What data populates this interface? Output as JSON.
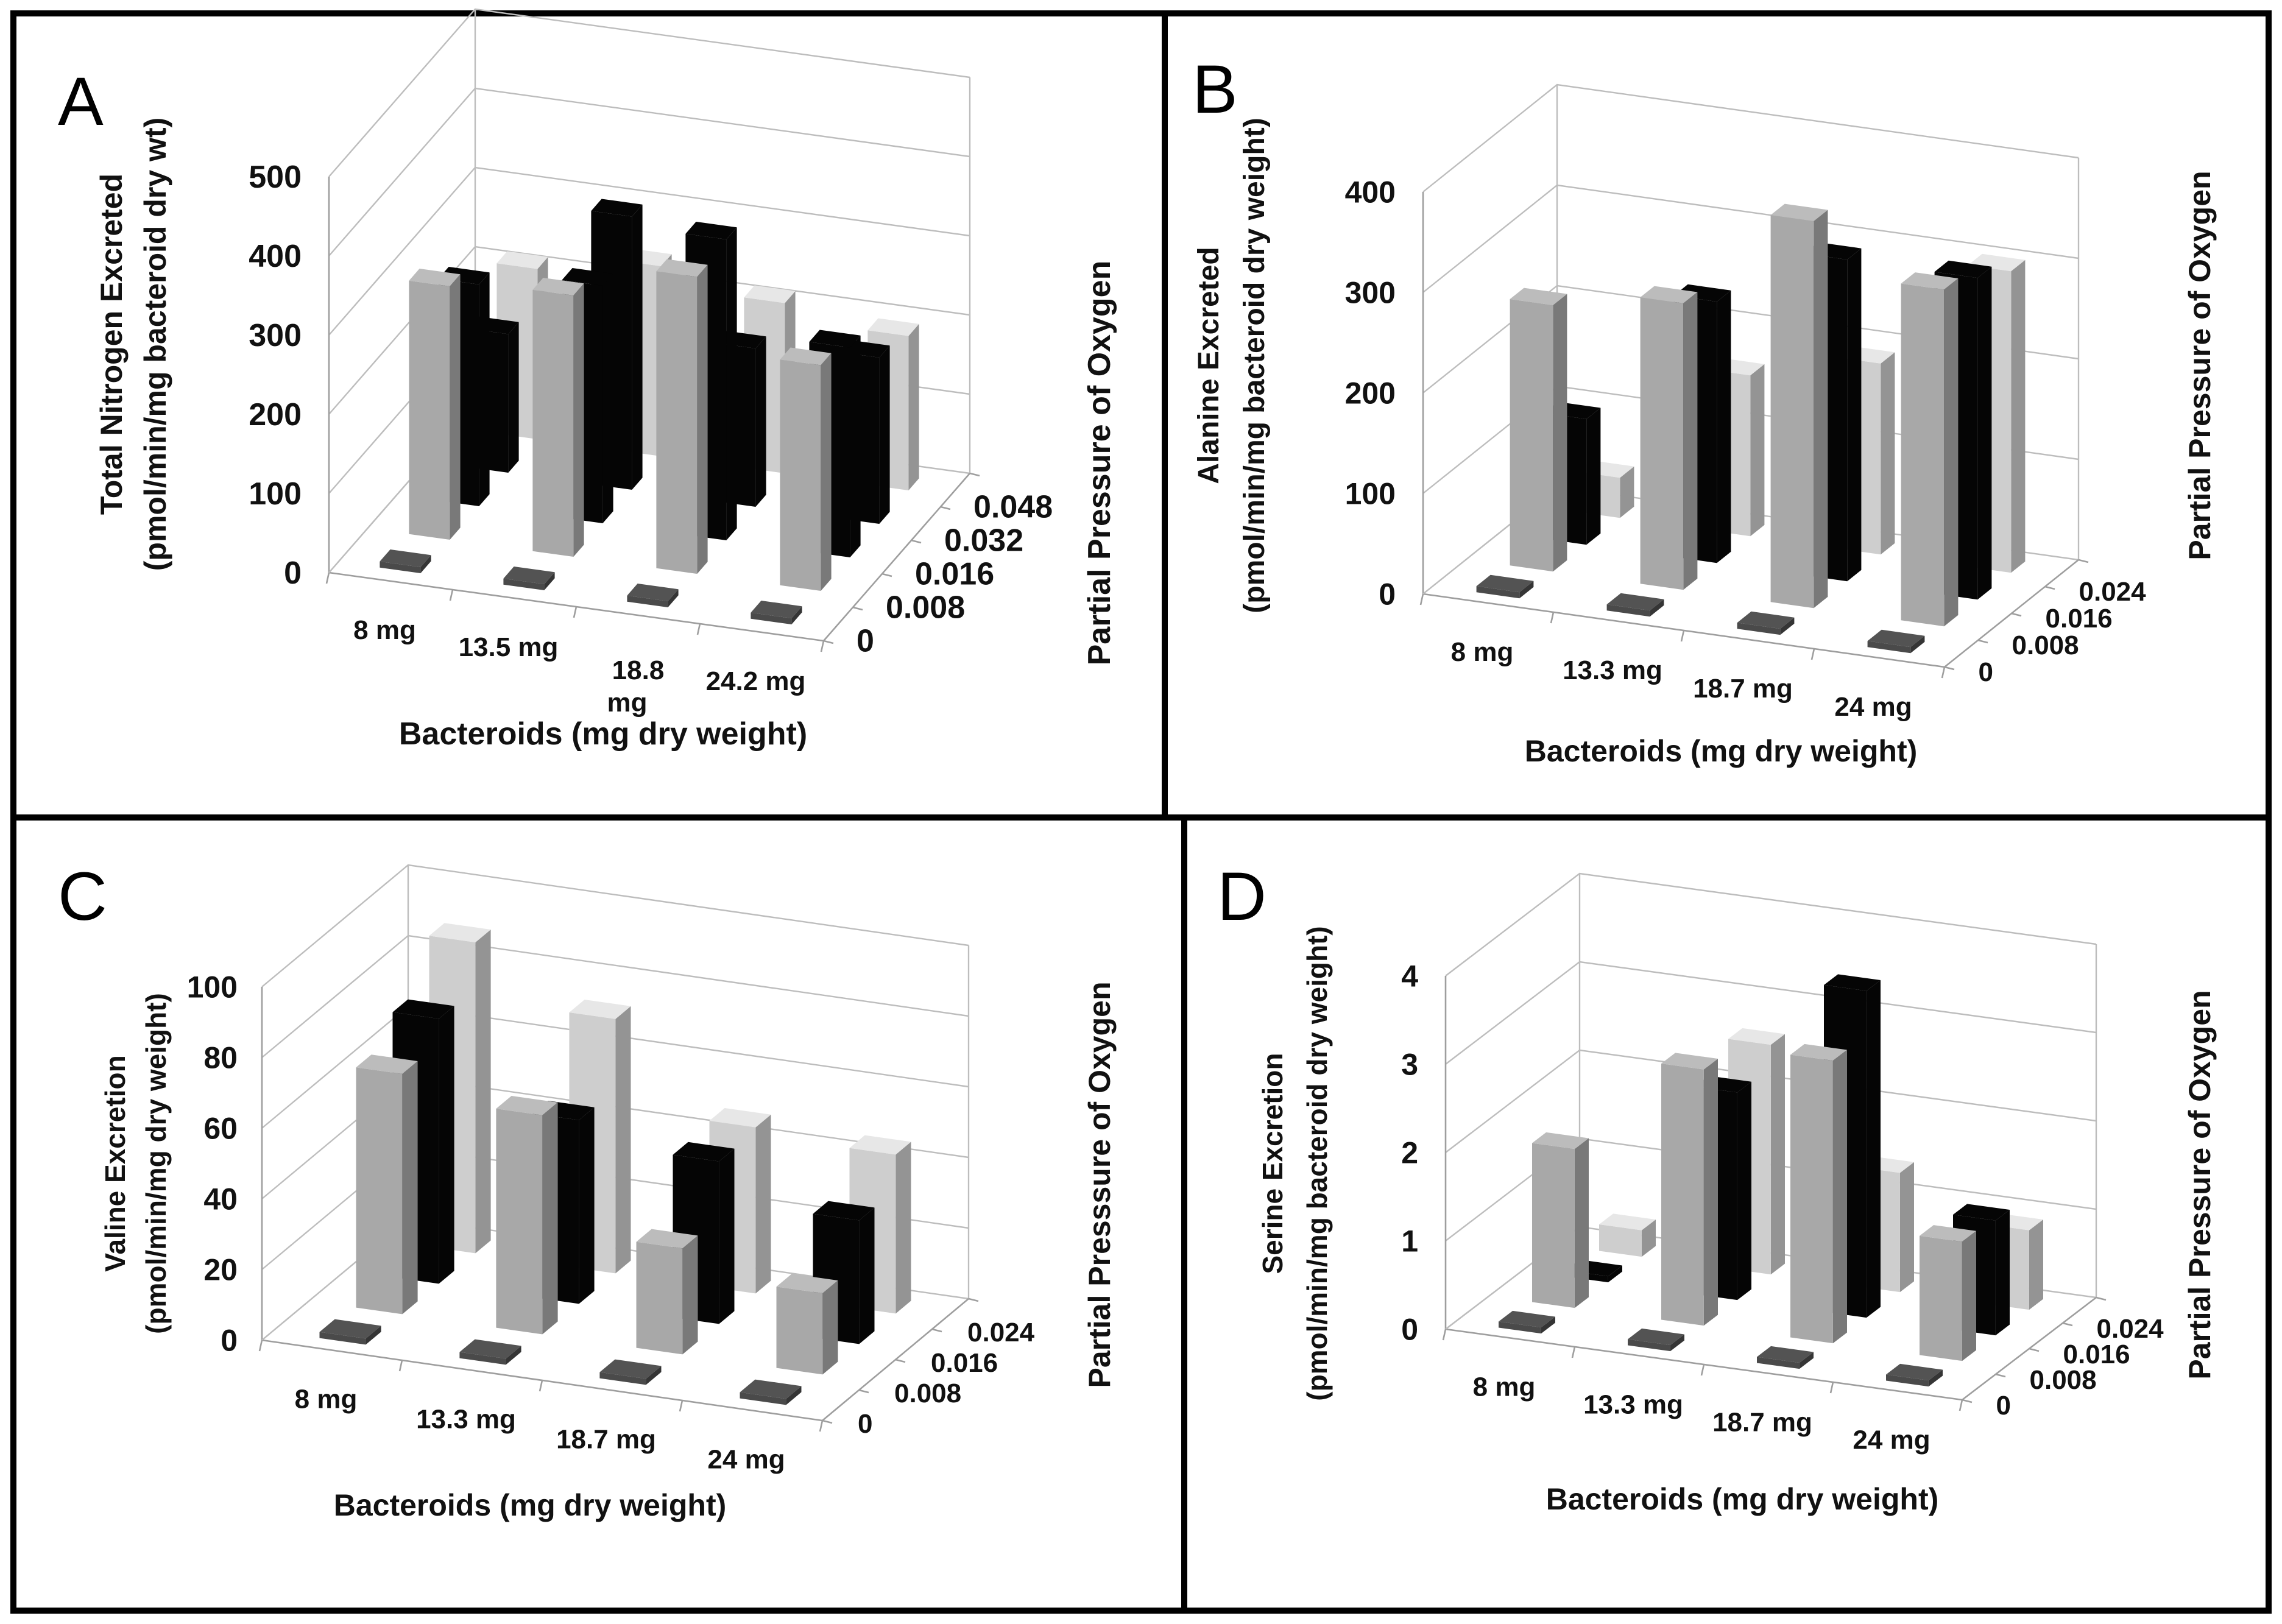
{
  "figure": {
    "colors": {
      "0": "#4a4a4a",
      "0.008": "#a8a8a8",
      "0.016": "#050505",
      "0.024": "#cecece",
      "0.032": "#050505",
      "0.048": "#cecece"
    }
  },
  "chart_data": [
    {
      "panel": "A",
      "type": "bar",
      "title": "",
      "xlabel": "Bacteroids (mg dry weight)",
      "ylabel": [
        "Total Nitrogen Excreted",
        "(pmol/min/mg bacteroid dry  wt)"
      ],
      "zlabel": "Partial Pressure of Oxygen",
      "categories": [
        "8 mg",
        "13.5 mg",
        "18.8 mg",
        "24.2 mg"
      ],
      "ylim": [
        0,
        500
      ],
      "yticks": [
        "0",
        "100",
        "200",
        "300",
        "400",
        "500"
      ],
      "grid": true,
      "series": [
        {
          "name": "0",
          "values": [
            0,
            0,
            0,
            0
          ]
        },
        {
          "name": "0.008",
          "values": [
            320,
            330,
            375,
            285
          ]
        },
        {
          "name": "0.016",
          "values": [
            280,
            300,
            380,
            265
          ]
        },
        {
          "name": "0.032",
          "values": [
            175,
            345,
            200,
            210
          ]
        },
        {
          "name": "0.048",
          "values": [
            215,
            240,
            215,
            195
          ]
        }
      ]
    },
    {
      "panel": "B",
      "type": "bar",
      "title": "",
      "xlabel": "Bacteroids (mg dry weight)",
      "ylabel": [
        "Alanine Excreted",
        "(pmol/min/mg bacteroid dry weight)"
      ],
      "zlabel": "Partial Pressure of Oxygen",
      "categories": [
        "8 mg",
        "13.3 mg",
        "18.7 mg",
        "24 mg"
      ],
      "ylim": [
        0,
        400
      ],
      "yticks": [
        "0",
        "100",
        "200",
        "300",
        "400"
      ],
      "grid": true,
      "series": [
        {
          "name": "0",
          "values": [
            0,
            0,
            0,
            0
          ]
        },
        {
          "name": "0.008",
          "values": [
            265,
            285,
            385,
            335
          ]
        },
        {
          "name": "0.016",
          "values": [
            125,
            260,
            320,
            320
          ]
        },
        {
          "name": "0.024",
          "values": [
            40,
            160,
            190,
            300
          ]
        }
      ]
    },
    {
      "panel": "C",
      "type": "bar",
      "title": "",
      "xlabel": "Bacteroids (mg dry weight)",
      "ylabel": [
        "Valine Excretion",
        "(pmol/min/mg dry weight)"
      ],
      "zlabel": "Partial Presssure of Oxygen",
      "categories": [
        "8 mg",
        "13.3 mg",
        "18.7 mg",
        "24 mg"
      ],
      "ylim": [
        0,
        100
      ],
      "yticks": [
        "0",
        "20",
        "40",
        "60",
        "80",
        "100"
      ],
      "grid": true,
      "series": [
        {
          "name": "0",
          "values": [
            0,
            0,
            0,
            0
          ]
        },
        {
          "name": "0.008",
          "values": [
            68,
            62,
            30,
            23
          ]
        },
        {
          "name": "0.016",
          "values": [
            75,
            52,
            46,
            35
          ]
        },
        {
          "name": "0.024",
          "values": [
            88,
            72,
            47,
            45
          ]
        }
      ]
    },
    {
      "panel": "D",
      "type": "bar",
      "title": "",
      "xlabel": "Bacteroids (mg dry weight)",
      "ylabel": [
        "Serine Excretion",
        "(pmol/min/mg bacteroid dry weight)"
      ],
      "zlabel": "Partial Pressure of Oxygen",
      "categories": [
        "8 mg",
        "13.3 mg",
        "18.7 mg",
        "24 mg"
      ],
      "ylim": [
        0,
        4
      ],
      "yticks": [
        "0",
        "1",
        "2",
        "3",
        "4"
      ],
      "grid": true,
      "series": [
        {
          "name": "0",
          "values": [
            0,
            0,
            0,
            0
          ]
        },
        {
          "name": "0.008",
          "values": [
            1.8,
            2.9,
            3.2,
            1.35
          ]
        },
        {
          "name": "0.016",
          "values": [
            0.02,
            2.35,
            3.7,
            1.3
          ]
        },
        {
          "name": "0.024",
          "values": [
            0.3,
            2.6,
            1.35,
            0.9
          ]
        }
      ]
    }
  ]
}
